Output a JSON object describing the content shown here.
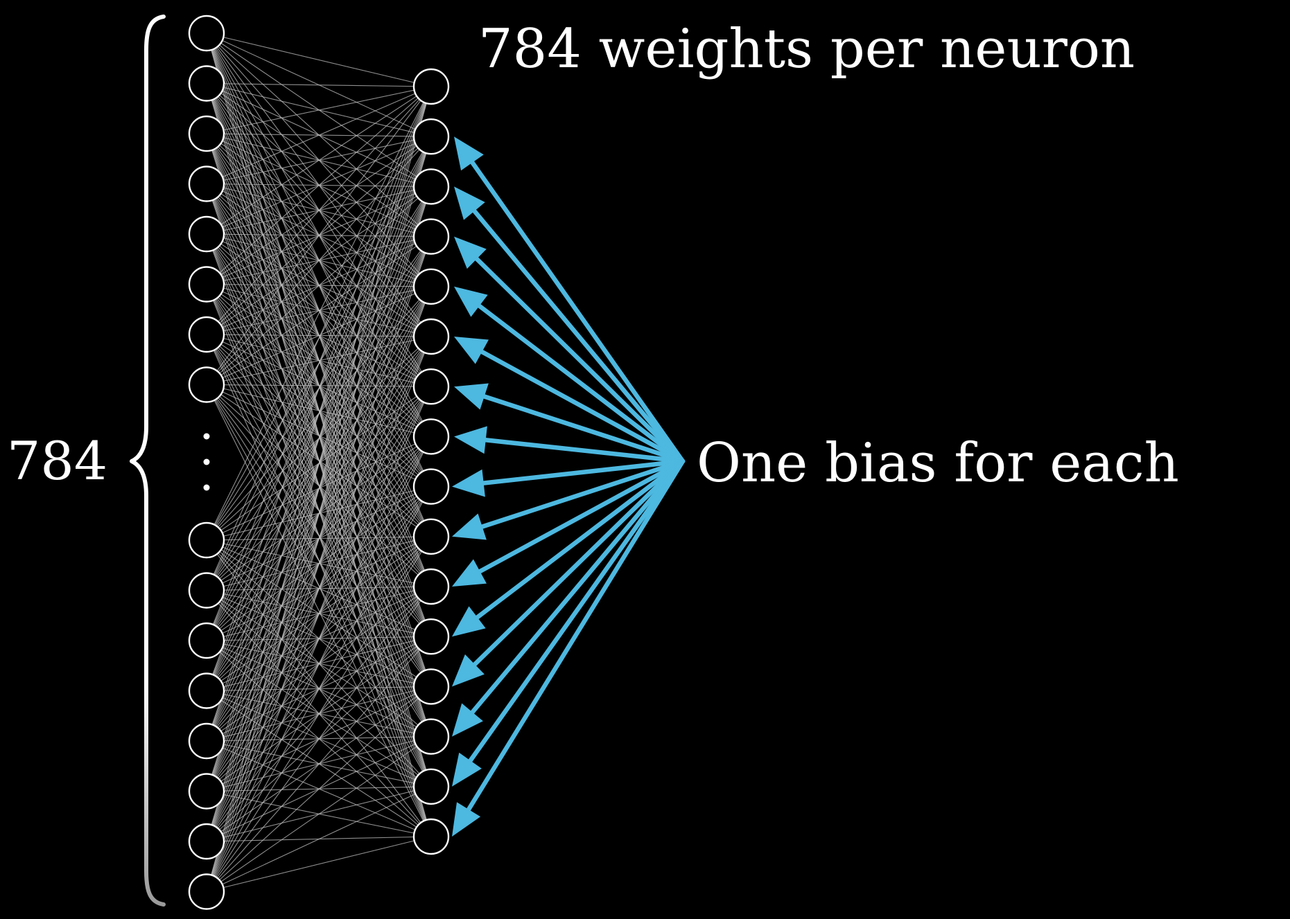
{
  "labels": {
    "input_count": "784",
    "weights_caption": "784 weights per neuron",
    "bias_caption": "One bias for each"
  },
  "diagram": {
    "input_layer": {
      "visible_neurons_top": 8,
      "visible_neurons_bottom": 8,
      "ellipsis": true,
      "stroke_color": "#ffffff"
    },
    "hidden_layer": {
      "neurons": 16,
      "stroke_color": "#ffffff"
    },
    "connection_color": "#bfbfbf",
    "bias_arrow_color": "#4db8e0",
    "bias_arrow_count": 15,
    "background_color": "#000000"
  }
}
